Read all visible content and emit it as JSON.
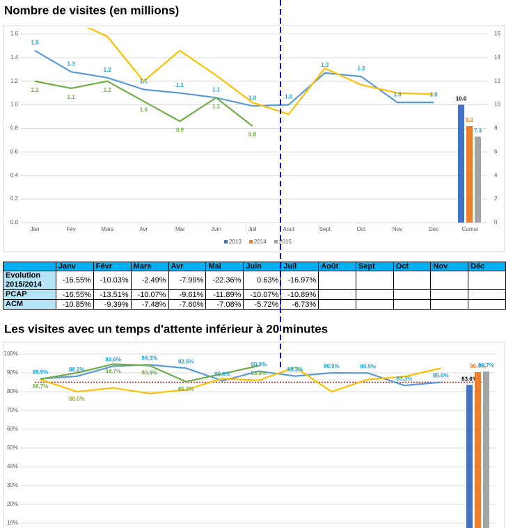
{
  "chart_data": [
    {
      "type": "line",
      "title": "Nombre de visites (en millions)",
      "categories": [
        "Jan",
        "Fev",
        "Mars",
        "Avr",
        "Mai",
        "Juin",
        "Juil",
        "Aout",
        "Sept",
        "Oct",
        "Nov",
        "Dec",
        "Cumul"
      ],
      "ylim": [
        0,
        1.6
      ],
      "yticks": [
        {
          "value": 0,
          "label": "0.0"
        },
        0.2,
        0.4,
        0.6,
        0.8,
        {
          "value": 1,
          "label": "1.0"
        },
        1.2,
        1.4,
        1.6
      ],
      "y2lim": [
        0,
        16
      ],
      "y2ticks": [
        0,
        2,
        4,
        6,
        8,
        10,
        12,
        14,
        16
      ],
      "grid": true,
      "legend": "bottom",
      "series": [
        {
          "name": "2013",
          "color": "#4472c4",
          "line_color": "#5b9bd5",
          "label_color": "#1aa3dd",
          "values": [
            1.46,
            1.28,
            1.23,
            1.13,
            1.1,
            1.06,
            0.99,
            1.0,
            1.27,
            1.24,
            1.02,
            1.02,
            null
          ],
          "value_labels": [
            "1.5",
            "1.3",
            "1.2",
            "1.1",
            "1.1",
            "1.1",
            "1.0",
            "1.0",
            "1.3",
            "1.2",
            "1.0",
            "1.0",
            null
          ],
          "bar_value": 10.0,
          "bar_label": "10.0",
          "bar_label_color": "#000000",
          "bar_axis": "y2"
        },
        {
          "name": "2014",
          "color": "#ed7d31",
          "line_color": "#ffc000",
          "label_color": "#ffc000",
          "values": [
            1.9,
            1.72,
            1.58,
            1.2,
            1.46,
            1.25,
            1.02,
            0.92,
            1.31,
            1.17,
            1.1,
            1.09,
            null
          ],
          "value_labels": [
            null,
            null,
            null,
            null,
            null,
            null,
            null,
            null,
            null,
            null,
            null,
            null,
            null
          ],
          "bar_value": 8.2,
          "bar_label": "8.2",
          "bar_label_color": "#ed7d31",
          "bar_axis": "y2"
        },
        {
          "name": "2015",
          "color": "#a5a5a5",
          "line_color": "#70ad47",
          "label_color": "#70ad47",
          "values": [
            1.2,
            1.14,
            1.2,
            1.03,
            0.86,
            1.06,
            0.82,
            null,
            null,
            null,
            null,
            null,
            null
          ],
          "value_labels": [
            "1.2",
            "1.1",
            "1.2",
            "1.0",
            "0.9",
            "1.1",
            "0.8",
            null,
            null,
            null,
            null,
            null,
            null
          ],
          "bar_value": 7.3,
          "bar_label": "7.3",
          "bar_label_color": "#1aa3dd",
          "bar_axis": "y2"
        }
      ]
    },
    {
      "type": "line",
      "title": "Les visites avec un temps d'attente inférieur à 20 minutes",
      "ylim": [
        0,
        100
      ],
      "yticks": [
        {
          "value": 10,
          "label": "10%"
        },
        {
          "value": 20,
          "label": "20%"
        },
        {
          "value": 30,
          "label": "30%"
        },
        {
          "value": 40,
          "label": "40%"
        },
        {
          "value": 50,
          "label": "50%"
        },
        {
          "value": 60,
          "label": "60%"
        },
        {
          "value": 70,
          "label": "70%"
        },
        {
          "value": 80,
          "label": "80%"
        },
        {
          "value": 90,
          "label": "90%"
        },
        {
          "value": 100,
          "label": "100%"
        }
      ],
      "grid": true,
      "reference_line": {
        "value": 85,
        "color": "#ff0000"
      },
      "series": [
        {
          "name": "2013",
          "color": "#4472c4",
          "line_color": "#5b9bd5",
          "label_color": "#1aa3dd",
          "values": [
            86.9,
            88.2,
            93.6,
            94.3,
            92.5,
            85.8,
            90.9,
            88.3,
            90.0,
            89.9,
            83.3,
            85.0,
            null
          ],
          "value_labels": [
            "86.9%",
            "88.2%",
            "93.6%",
            "94.3%",
            "92.5%",
            "85.8%",
            "90.9%",
            "88.3%",
            "90.0%",
            "89.9%",
            "83.3%",
            "85.0%",
            null
          ],
          "bar_value": 83.6,
          "bar_label": "83.6%",
          "bar_label_color": "#000000",
          "bar_axis": "y"
        },
        {
          "name": "2014",
          "color": "#ed7d31",
          "line_color": "#ffc000",
          "label_color": "#a0a040",
          "values": [
            86.5,
            80.0,
            82,
            79,
            81,
            87,
            86,
            93,
            80,
            86.5,
            88,
            92.5,
            null
          ],
          "value_labels": [
            null,
            "80.0%",
            null,
            null,
            null,
            null,
            null,
            null,
            null,
            null,
            null,
            null,
            null
          ],
          "bar_value": 90.4,
          "bar_label": "90.4%",
          "bar_label_color": "#ed7d31",
          "bar_axis": "y"
        },
        {
          "name": "2015",
          "color": "#a5a5a5",
          "line_color": "#70ad47",
          "label_color": "#70ad47",
          "values": [
            86.7,
            90,
            94.7,
            93.9,
            85.3,
            89.5,
            93.8,
            null,
            null,
            null,
            null,
            null,
            null
          ],
          "value_labels": [
            "86.7%",
            null,
            "94.7%",
            "93.9%",
            "85.3%",
            null,
            "93.8%",
            null,
            null,
            null,
            null,
            null,
            null
          ],
          "bar_value": 90.7,
          "bar_label": "90.7%",
          "bar_label_color": "#1aa3dd",
          "bar_axis": "y"
        }
      ]
    }
  ],
  "table": {
    "header": [
      "Janv",
      "Févr",
      "Mars",
      "Avr",
      "Mai",
      "Juin",
      "Juil",
      "Août",
      "Sept",
      "Oct",
      "Nov",
      "Déc"
    ],
    "rows": [
      {
        "label": "Evolution 2015/2014",
        "cells": [
          "-16.55%",
          "-10.03%",
          "-2.49%",
          "-7.99%",
          "-22.36%",
          "0.63%",
          "-16.97%",
          null,
          null,
          null,
          null,
          null
        ]
      },
      {
        "label": "PCAP",
        "cells": [
          "-16.55%",
          "-13.51%",
          "-10.07%",
          "-9.61%",
          "-11.89%",
          "-10.07%",
          "-10.89%",
          null,
          null,
          null,
          null,
          null
        ]
      },
      {
        "label": "ACM",
        "cells": [
          "-10.85%",
          "-9.39%",
          "-7.48%",
          "-7.60%",
          "-7.08%",
          "-5.72%",
          "-6.73%",
          null,
          null,
          null,
          null,
          null
        ]
      }
    ]
  }
}
